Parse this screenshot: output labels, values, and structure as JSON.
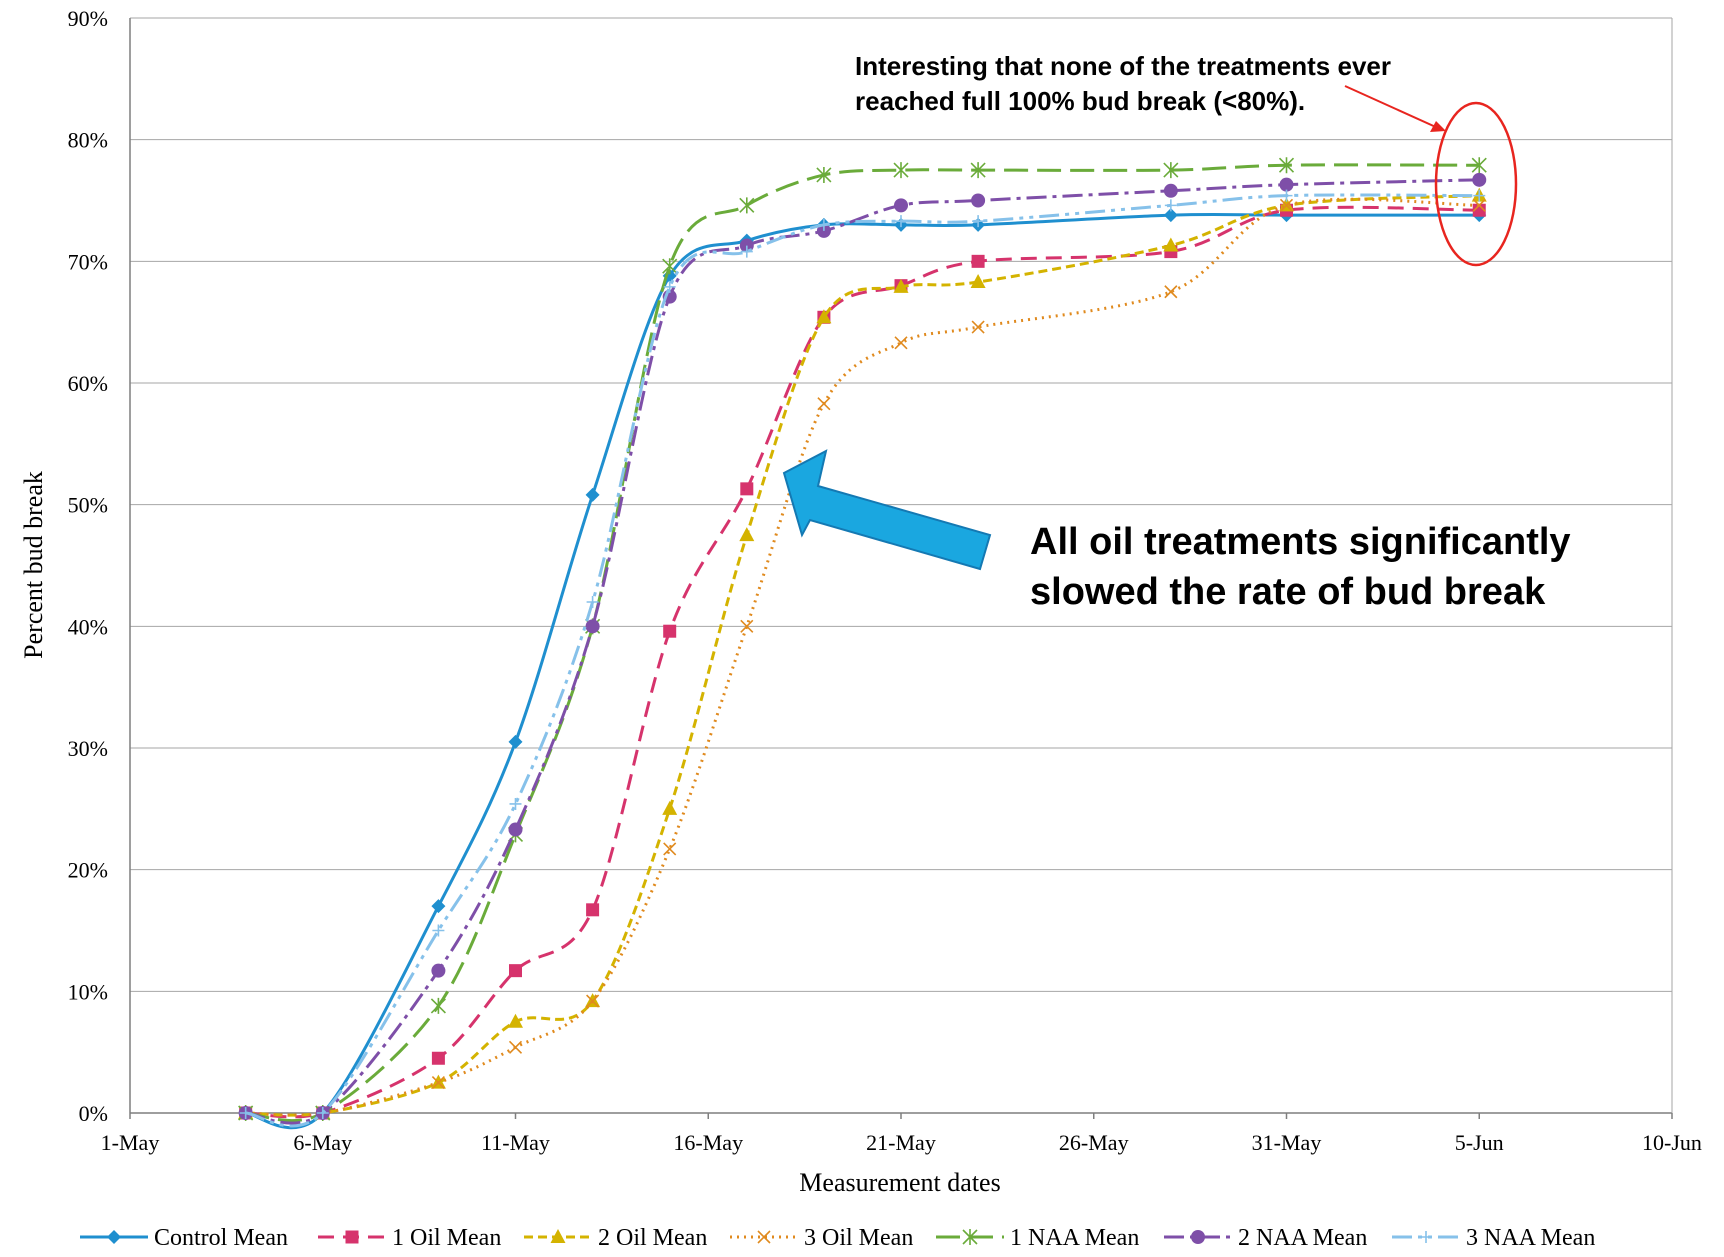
{
  "chart_data": {
    "type": "line",
    "title": "",
    "xlabel": "Measurement dates",
    "ylabel": "Percent bud break",
    "x_ticks": [
      "1-May",
      "6-May",
      "11-May",
      "16-May",
      "21-May",
      "26-May",
      "31-May",
      "5-Jun",
      "10-Jun"
    ],
    "x_range_days": [
      0,
      40
    ],
    "y_ticks": [
      "0%",
      "10%",
      "20%",
      "30%",
      "40%",
      "50%",
      "60%",
      "70%",
      "80%",
      "90%"
    ],
    "ylim": [
      0,
      90
    ],
    "grid": "horizontal",
    "legend_position": "bottom",
    "series": [
      {
        "name": "Control Mean",
        "color": "#1f8fcf",
        "dash": "",
        "marker": "diamond",
        "x": [
          "4-May",
          "6-May",
          "9-May",
          "11-May",
          "13-May",
          "15-May",
          "17-May",
          "19-May",
          "21-May",
          "23-May",
          "28-May",
          "31-May",
          "5-Jun"
        ],
        "values": [
          0,
          0,
          17,
          30.5,
          50.8,
          68.8,
          71.7,
          73,
          73,
          73,
          73.8,
          73.8,
          73.8
        ]
      },
      {
        "name": "1 Oil Mean",
        "color": "#d6336c",
        "dash": "16,9",
        "marker": "square",
        "x": [
          "4-May",
          "6-May",
          "9-May",
          "11-May",
          "13-May",
          "15-May",
          "17-May",
          "19-May",
          "21-May",
          "23-May",
          "28-May",
          "31-May",
          "5-Jun"
        ],
        "values": [
          0,
          0,
          4.5,
          11.7,
          16.7,
          39.6,
          51.3,
          65.4,
          68,
          70,
          70.8,
          74.2,
          74.2
        ]
      },
      {
        "name": "2 Oil Mean",
        "color": "#d4b300",
        "dash": "9,5",
        "marker": "triangle",
        "x": [
          "4-May",
          "6-May",
          "9-May",
          "11-May",
          "13-May",
          "15-May",
          "17-May",
          "19-May",
          "21-May",
          "23-May",
          "28-May",
          "31-May",
          "5-Jun"
        ],
        "values": [
          0,
          0,
          2.5,
          7.5,
          9.2,
          25,
          47.5,
          65.4,
          67.9,
          68.3,
          71.3,
          74.6,
          75.4
        ]
      },
      {
        "name": "3 Oil Mean",
        "color": "#e08a1e",
        "dash": "2,5",
        "marker": "x",
        "x": [
          "4-May",
          "6-May",
          "9-May",
          "11-May",
          "13-May",
          "15-May",
          "17-May",
          "19-May",
          "21-May",
          "23-May",
          "28-May",
          "31-May",
          "5-Jun"
        ],
        "values": [
          0,
          0,
          2.5,
          5.4,
          9.2,
          21.7,
          40,
          58.3,
          63.3,
          64.6,
          67.5,
          74.6,
          74.6
        ]
      },
      {
        "name": "1 NAA Mean",
        "color": "#6aab3a",
        "dash": "24,9",
        "marker": "star",
        "x": [
          "4-May",
          "6-May",
          "9-May",
          "11-May",
          "13-May",
          "15-May",
          "17-May",
          "19-May",
          "21-May",
          "23-May",
          "28-May",
          "31-May",
          "5-Jun"
        ],
        "values": [
          0,
          0,
          8.8,
          22.9,
          40,
          69.6,
          74.6,
          77.1,
          77.5,
          77.5,
          77.5,
          77.9,
          77.9
        ]
      },
      {
        "name": "2 NAA Mean",
        "color": "#7e4fa8",
        "dash": "20,6,4,6",
        "marker": "circle",
        "x": [
          "4-May",
          "6-May",
          "9-May",
          "11-May",
          "13-May",
          "15-May",
          "17-May",
          "19-May",
          "21-May",
          "23-May",
          "28-May",
          "31-May",
          "5-Jun"
        ],
        "values": [
          0,
          0,
          11.7,
          23.3,
          40,
          67.1,
          71.3,
          72.5,
          74.6,
          75,
          75.8,
          76.3,
          76.7
        ]
      },
      {
        "name": "3 NAA Mean",
        "color": "#86c1ea",
        "dash": "20,6,4,6,4,6",
        "marker": "plus",
        "x": [
          "4-May",
          "6-May",
          "9-May",
          "11-May",
          "13-May",
          "15-May",
          "17-May",
          "19-May",
          "21-May",
          "23-May",
          "28-May",
          "31-May",
          "5-Jun"
        ],
        "values": [
          0,
          0,
          15,
          25.4,
          42,
          67.9,
          70.8,
          73,
          73.3,
          73.3,
          74.6,
          75.4,
          75.4
        ]
      }
    ],
    "annotations": [
      {
        "text_lines": [
          "Interesting that none of the treatments ever",
          "reached full 100% bud break (<80%)."
        ],
        "arrow_color": "#e8251f",
        "highlight": "ellipse"
      },
      {
        "text_lines": [
          "All oil treatments significantly",
          "slowed the rate of bud break"
        ],
        "arrow_color": "#1aa7e0"
      }
    ]
  }
}
